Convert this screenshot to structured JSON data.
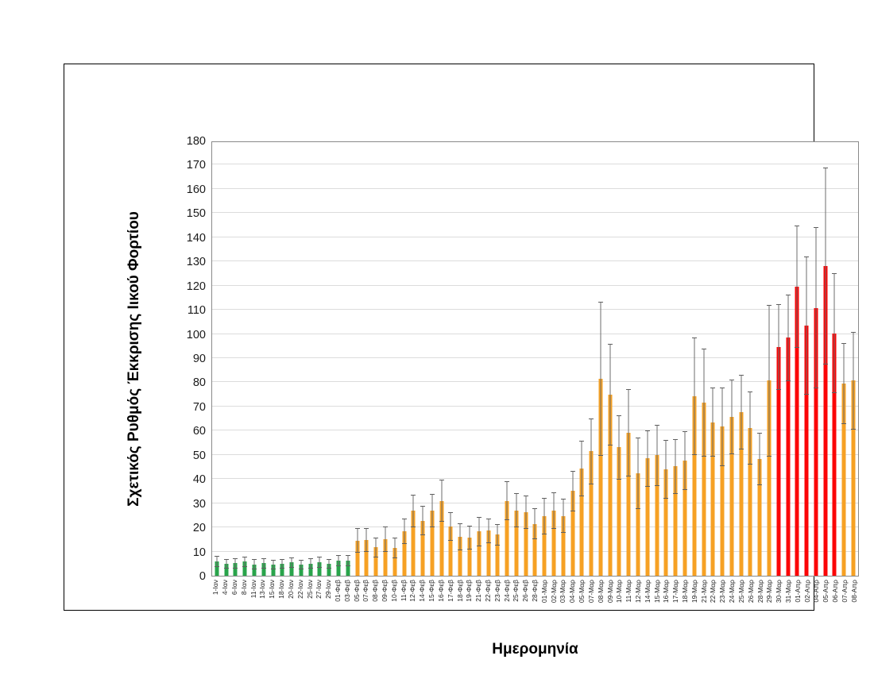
{
  "chart_data": {
    "type": "bar",
    "xlabel": "Ημερομηνία",
    "ylabel": "Σχετικός Ρυθμός Έκκρισης Ιικού Φορτίου",
    "ylim": [
      0,
      180
    ],
    "ytick_step": 10,
    "grid": true,
    "legend": "none",
    "palette": {
      "green": "#29a44b",
      "orange": "#f6a124",
      "red": "#fb0507",
      "error": "#6e6e6e"
    },
    "bars": [
      {
        "label": "1-Ιαν",
        "value": 6.0,
        "err": 2.3,
        "color": "green"
      },
      {
        "label": "4-Ιαν",
        "value": 4.9,
        "err": 2.1,
        "color": "green"
      },
      {
        "label": "6-Ιαν",
        "value": 5.1,
        "err": 2.1,
        "color": "green"
      },
      {
        "label": "8-Ιαν",
        "value": 5.8,
        "err": 2.2,
        "color": "green"
      },
      {
        "label": "11-Ιαν",
        "value": 4.7,
        "err": 2.1,
        "color": "green"
      },
      {
        "label": "13-Ιαν",
        "value": 5.1,
        "err": 2.0,
        "color": "green"
      },
      {
        "label": "15-Ιαν",
        "value": 4.7,
        "err": 2.0,
        "color": "green"
      },
      {
        "label": "18-Ιαν",
        "value": 4.9,
        "err": 2.0,
        "color": "green"
      },
      {
        "label": "20-Ιαν",
        "value": 5.5,
        "err": 2.2,
        "color": "green"
      },
      {
        "label": "22-Ιαν",
        "value": 4.7,
        "err": 2.0,
        "color": "green"
      },
      {
        "label": "25-Ιαν",
        "value": 5.0,
        "err": 2.1,
        "color": "green"
      },
      {
        "label": "27-Ιαν",
        "value": 5.6,
        "err": 2.2,
        "color": "green"
      },
      {
        "label": "29-Ιαν",
        "value": 4.9,
        "err": 2.0,
        "color": "green"
      },
      {
        "label": "01-Φεβ",
        "value": 6.4,
        "err": 2.3,
        "color": "green"
      },
      {
        "label": "03-Φεβ",
        "value": 6.2,
        "err": 2.3,
        "color": "green"
      },
      {
        "label": "05-Φεβ",
        "value": 14.5,
        "err": 5.1,
        "color": "orange"
      },
      {
        "label": "07-Φεβ",
        "value": 14.8,
        "err": 5.0,
        "color": "orange"
      },
      {
        "label": "08-Φεβ",
        "value": 11.7,
        "err": 4.0,
        "color": "orange"
      },
      {
        "label": "09-Φεβ",
        "value": 15.1,
        "err": 5.4,
        "color": "orange"
      },
      {
        "label": "10-Φεβ",
        "value": 11.5,
        "err": 4.4,
        "color": "orange"
      },
      {
        "label": "11-Φεβ",
        "value": 18.3,
        "err": 5.2,
        "color": "orange"
      },
      {
        "label": "12-Φεβ",
        "value": 26.8,
        "err": 6.8,
        "color": "orange"
      },
      {
        "label": "14-Φεβ",
        "value": 22.7,
        "err": 6.1,
        "color": "orange"
      },
      {
        "label": "15-Φεβ",
        "value": 27.0,
        "err": 7.0,
        "color": "orange"
      },
      {
        "label": "16-Φεβ",
        "value": 31.0,
        "err": 8.7,
        "color": "orange"
      },
      {
        "label": "17-Φεβ",
        "value": 20.5,
        "err": 5.9,
        "color": "orange"
      },
      {
        "label": "18-Φεβ",
        "value": 16.1,
        "err": 5.6,
        "color": "orange"
      },
      {
        "label": "19-Φεβ",
        "value": 15.9,
        "err": 4.9,
        "color": "orange"
      },
      {
        "label": "21-Φεβ",
        "value": 18.3,
        "err": 6.0,
        "color": "orange"
      },
      {
        "label": "22-Φεβ",
        "value": 18.6,
        "err": 5.1,
        "color": "orange"
      },
      {
        "label": "23-Φεβ",
        "value": 17.0,
        "err": 4.5,
        "color": "orange"
      },
      {
        "label": "24-Φεβ",
        "value": 31.0,
        "err": 8.0,
        "color": "orange"
      },
      {
        "label": "25-Φεβ",
        "value": 27.1,
        "err": 7.2,
        "color": "orange"
      },
      {
        "label": "26-Φεβ",
        "value": 26.3,
        "err": 7.0,
        "color": "orange"
      },
      {
        "label": "28-Φεβ",
        "value": 21.4,
        "err": 6.4,
        "color": "orange"
      },
      {
        "label": "01-Μαρ",
        "value": 24.7,
        "err": 7.5,
        "color": "orange"
      },
      {
        "label": "02-Μαρ",
        "value": 27.0,
        "err": 7.6,
        "color": "orange"
      },
      {
        "label": "03-Μαρ",
        "value": 24.8,
        "err": 7.0,
        "color": "orange"
      },
      {
        "label": "04-Μαρ",
        "value": 35.0,
        "err": 8.3,
        "color": "orange"
      },
      {
        "label": "05-Μαρ",
        "value": 44.5,
        "err": 11.5,
        "color": "orange"
      },
      {
        "label": "07-Μαρ",
        "value": 51.5,
        "err": 13.7,
        "color": "orange"
      },
      {
        "label": "08-Μαρ",
        "value": 81.4,
        "err": 31.9,
        "color": "orange"
      },
      {
        "label": "09-Μαρ",
        "value": 75.0,
        "err": 21.0,
        "color": "orange"
      },
      {
        "label": "10-Μαρ",
        "value": 53.1,
        "err": 13.4,
        "color": "orange"
      },
      {
        "label": "11-Μαρ",
        "value": 59.2,
        "err": 18.0,
        "color": "orange"
      },
      {
        "label": "12-Μαρ",
        "value": 42.4,
        "err": 14.8,
        "color": "orange"
      },
      {
        "label": "14-Μαρ",
        "value": 48.5,
        "err": 11.7,
        "color": "orange"
      },
      {
        "label": "15-Μαρ",
        "value": 49.8,
        "err": 12.7,
        "color": "orange"
      },
      {
        "label": "16-Μαρ",
        "value": 44.1,
        "err": 12.1,
        "color": "orange"
      },
      {
        "label": "17-Μαρ",
        "value": 45.2,
        "err": 11.4,
        "color": "orange"
      },
      {
        "label": "18-Μαρ",
        "value": 47.6,
        "err": 12.1,
        "color": "orange"
      },
      {
        "label": "19-Μαρ",
        "value": 74.2,
        "err": 24.2,
        "color": "orange"
      },
      {
        "label": "21-Μαρ",
        "value": 71.7,
        "err": 22.3,
        "color": "orange"
      },
      {
        "label": "22-Μαρ",
        "value": 63.5,
        "err": 14.3,
        "color": "orange"
      },
      {
        "label": "23-Μαρ",
        "value": 61.7,
        "err": 16.3,
        "color": "orange"
      },
      {
        "label": "24-Μαρ",
        "value": 65.7,
        "err": 15.6,
        "color": "orange"
      },
      {
        "label": "25-Μαρ",
        "value": 67.6,
        "err": 15.4,
        "color": "orange"
      },
      {
        "label": "26-Μαρ",
        "value": 61.1,
        "err": 15.2,
        "color": "orange"
      },
      {
        "label": "28-Μαρ",
        "value": 48.2,
        "err": 10.8,
        "color": "orange"
      },
      {
        "label": "29-Μαρ",
        "value": 80.7,
        "err": 31.3,
        "color": "orange"
      },
      {
        "label": "30-Μαρ",
        "value": 94.5,
        "err": 17.7,
        "color": "red"
      },
      {
        "label": "31-Μαρ",
        "value": 98.4,
        "err": 18.0,
        "color": "red"
      },
      {
        "label": "01-Απρ",
        "value": 119.6,
        "err": 25.2,
        "color": "red"
      },
      {
        "label": "02-Απρ",
        "value": 103.5,
        "err": 28.7,
        "color": "red"
      },
      {
        "label": "04-Απρ",
        "value": 110.8,
        "err": 33.4,
        "color": "red"
      },
      {
        "label": "05-Απρ",
        "value": 128.0,
        "err": 40.7,
        "color": "red"
      },
      {
        "label": "06-Απρ",
        "value": 100.3,
        "err": 24.9,
        "color": "red"
      },
      {
        "label": "07-Απρ",
        "value": 79.5,
        "err": 16.6,
        "color": "orange"
      },
      {
        "label": "08-Απρ",
        "value": 80.7,
        "err": 20.1,
        "color": "orange"
      }
    ]
  }
}
